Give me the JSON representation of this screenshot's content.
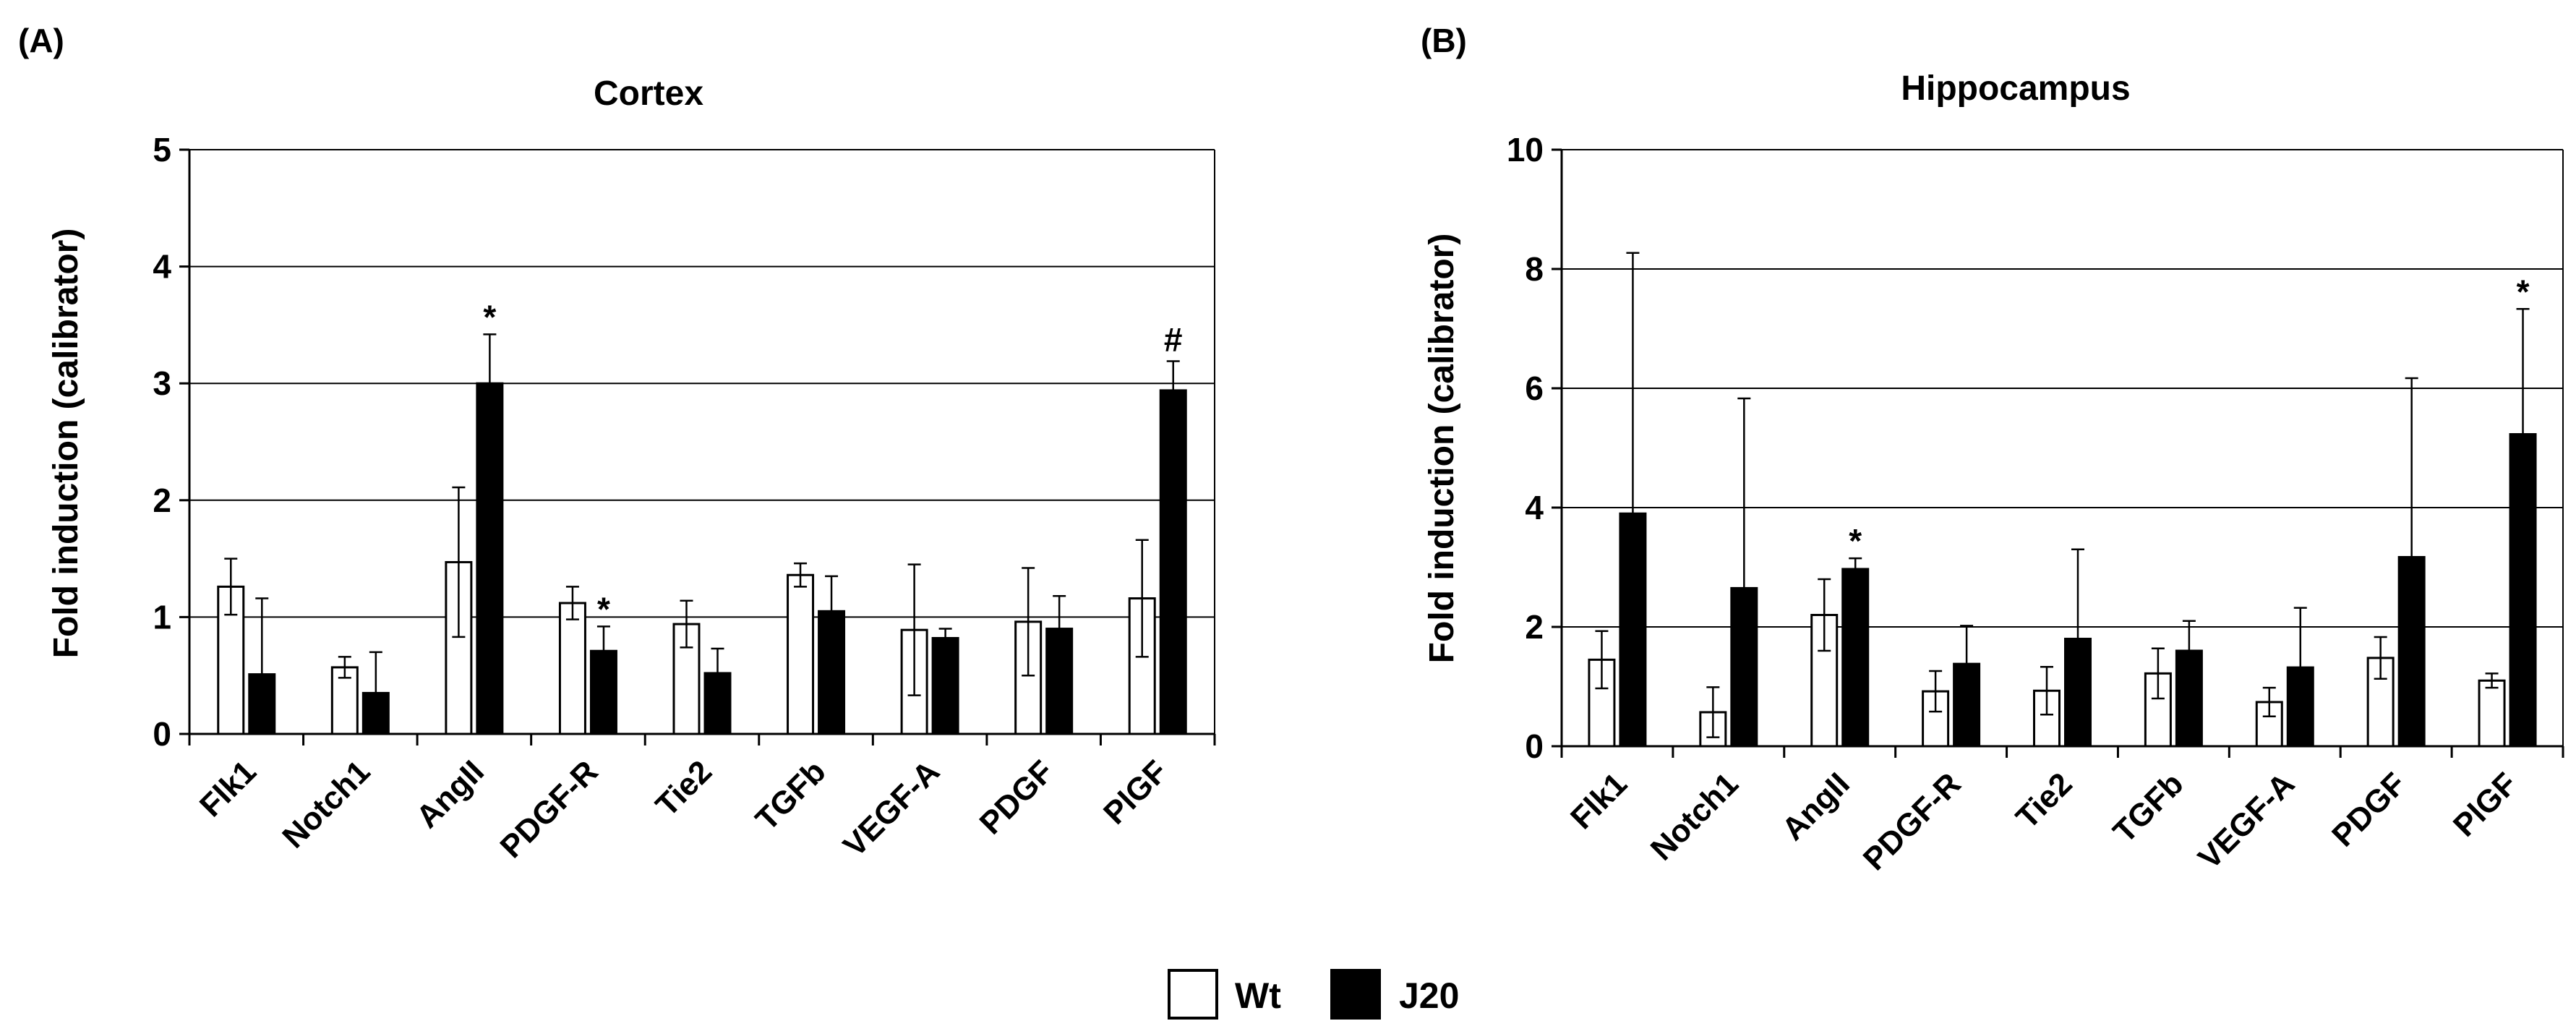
{
  "legend": [
    {
      "name": "Wt",
      "fill": "#ffffff"
    },
    {
      "name": "J20",
      "fill": "#000000"
    }
  ],
  "chart_data": [
    {
      "panel_label": "(A)",
      "type": "bar",
      "title": "Cortex",
      "xlabel": "",
      "ylabel": "Fold induction (calibrator)",
      "ylim": [
        0,
        5
      ],
      "yticks": [
        0,
        1,
        2,
        3,
        4,
        5
      ],
      "grid": true,
      "categories": [
        "Flk1",
        "Notch1",
        "AngII",
        "PDGF-R",
        "Tie2",
        "TGFb",
        "VEGF-A",
        "PDGF",
        "PlGF"
      ],
      "series": [
        {
          "name": "Wt",
          "values": [
            1.26,
            0.57,
            1.47,
            1.12,
            0.94,
            1.36,
            0.89,
            0.96,
            1.16
          ],
          "errors": [
            0.24,
            0.09,
            0.64,
            0.14,
            0.2,
            0.1,
            0.56,
            0.46,
            0.5
          ]
        },
        {
          "name": "J20",
          "values": [
            0.51,
            0.35,
            3.0,
            0.71,
            0.52,
            1.05,
            0.82,
            0.9,
            2.94
          ],
          "errors": [
            0.65,
            0.35,
            0.42,
            0.21,
            0.21,
            0.3,
            0.08,
            0.28,
            0.25
          ]
        }
      ],
      "annotations": [
        {
          "text": "*",
          "category": "AngII",
          "series": "J20"
        },
        {
          "text": "*",
          "category": "PDGF-R",
          "series": "J20"
        },
        {
          "text": "#",
          "category": "PlGF",
          "series": "J20"
        }
      ]
    },
    {
      "panel_label": "(B)",
      "type": "bar",
      "title": "Hippocampus",
      "xlabel": "",
      "ylabel": "Fold induction (calibrator)",
      "ylim": [
        0,
        10
      ],
      "yticks": [
        0,
        2,
        4,
        6,
        8,
        10
      ],
      "grid": true,
      "categories": [
        "Flk1",
        "Notch1",
        "AngII",
        "PDGF-R",
        "Tie2",
        "TGFb",
        "VEGF-A",
        "PDGF",
        "PlGF"
      ],
      "series": [
        {
          "name": "Wt",
          "values": [
            1.45,
            0.57,
            2.2,
            0.92,
            0.93,
            1.22,
            0.74,
            1.48,
            1.1
          ],
          "errors": [
            0.48,
            0.42,
            0.6,
            0.34,
            0.4,
            0.42,
            0.24,
            0.35,
            0.12
          ]
        },
        {
          "name": "J20",
          "values": [
            3.9,
            2.65,
            2.97,
            1.38,
            1.8,
            1.6,
            1.32,
            3.17,
            5.23
          ],
          "errors": [
            4.37,
            3.18,
            0.18,
            0.64,
            1.5,
            0.5,
            1.0,
            3.0,
            2.1
          ]
        }
      ],
      "annotations": [
        {
          "text": "*",
          "category": "AngII",
          "series": "J20"
        },
        {
          "text": "*",
          "category": "PlGF",
          "series": "J20"
        }
      ]
    }
  ]
}
